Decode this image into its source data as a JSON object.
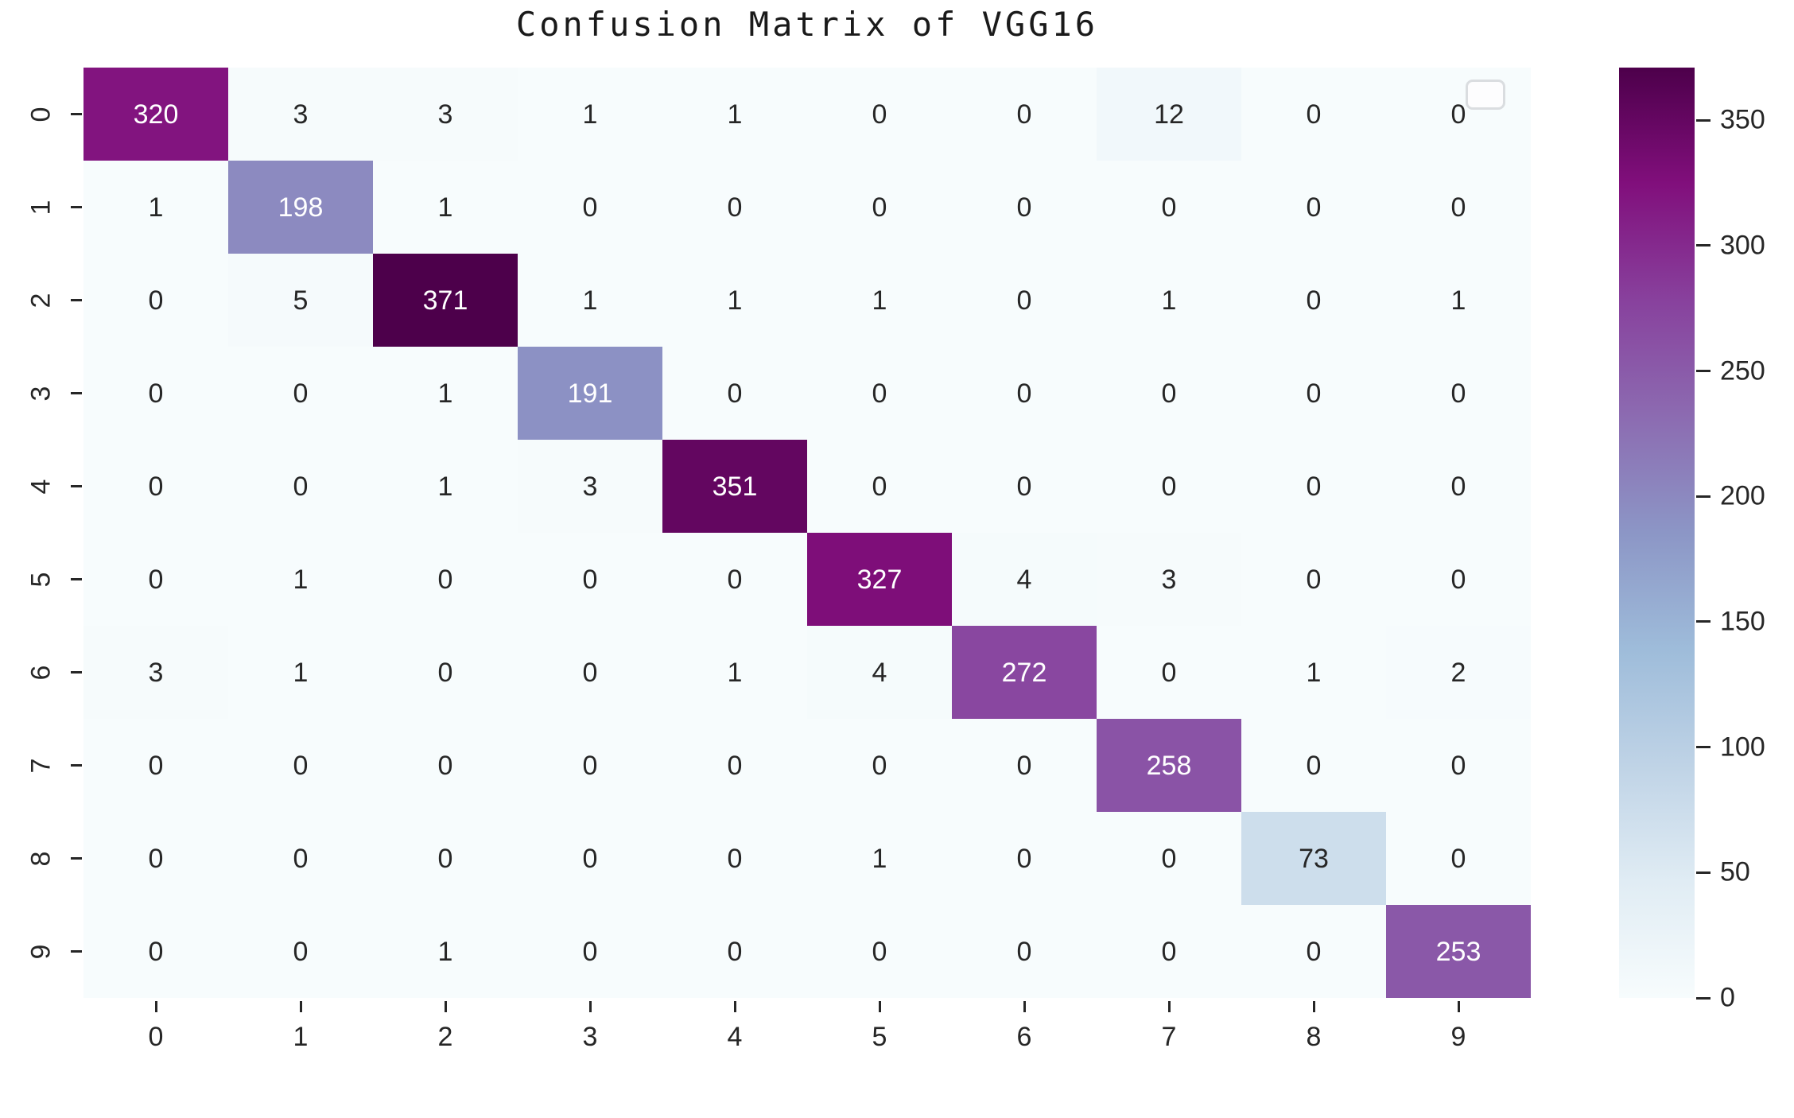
{
  "page": {
    "background_color": "#ffffff"
  },
  "chart_data": {
    "type": "heatmap",
    "title": "Confusion Matrix of VGG16",
    "x_tick_labels": [
      "0",
      "1",
      "2",
      "3",
      "4",
      "5",
      "6",
      "7",
      "8",
      "9"
    ],
    "y_tick_labels": [
      "0",
      "1",
      "2",
      "3",
      "4",
      "5",
      "6",
      "7",
      "8",
      "9"
    ],
    "matrix": [
      [
        320,
        3,
        3,
        1,
        1,
        0,
        0,
        12,
        0,
        0
      ],
      [
        1,
        198,
        1,
        0,
        0,
        0,
        0,
        0,
        0,
        0
      ],
      [
        0,
        5,
        371,
        1,
        1,
        1,
        0,
        1,
        0,
        1
      ],
      [
        0,
        0,
        1,
        191,
        0,
        0,
        0,
        0,
        0,
        0
      ],
      [
        0,
        0,
        1,
        3,
        351,
        0,
        0,
        0,
        0,
        0
      ],
      [
        0,
        1,
        0,
        0,
        0,
        327,
        4,
        3,
        0,
        0
      ],
      [
        3,
        1,
        0,
        0,
        1,
        4,
        272,
        0,
        1,
        2
      ],
      [
        0,
        0,
        0,
        0,
        0,
        0,
        0,
        258,
        0,
        0
      ],
      [
        0,
        0,
        0,
        0,
        0,
        1,
        0,
        0,
        73,
        0
      ],
      [
        0,
        0,
        1,
        0,
        0,
        0,
        0,
        0,
        0,
        253
      ]
    ],
    "vmin": 0,
    "vmax": 371,
    "colormap_name": "BuPu",
    "colormap_stops": [
      "#f7fcfd",
      "#e0ecf4",
      "#bfd3e6",
      "#9ebcda",
      "#8c96c6",
      "#8c6bb1",
      "#88419d",
      "#810f7c",
      "#4d004b"
    ],
    "colorbar_tick_values": [
      0,
      50,
      100,
      150,
      200,
      250,
      300,
      350
    ],
    "annotation_dark_text_color": "#262626",
    "annotation_light_text_color": "#ffffff",
    "tick_color": "#262626",
    "legend": {
      "present": true,
      "content": "",
      "position": "upper-right"
    },
    "grid": false
  }
}
